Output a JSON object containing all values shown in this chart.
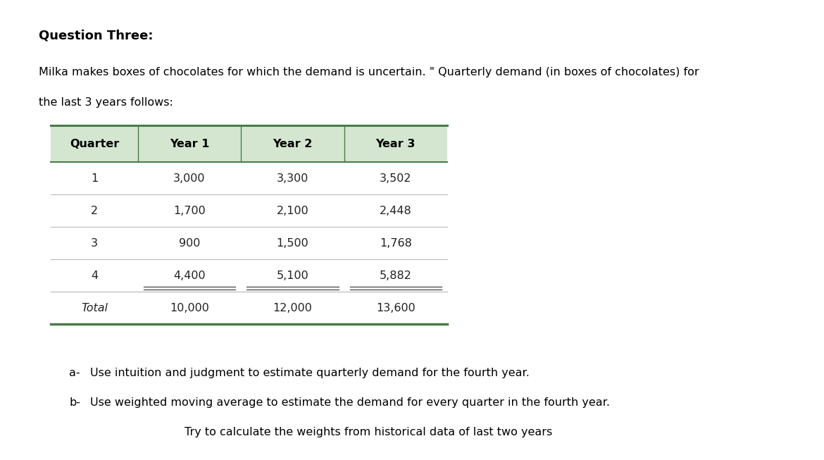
{
  "title": "Question Three:",
  "intro_text_line1": "Milka makes boxes of chocolates for which the demand is uncertain. \" Quarterly demand (in boxes of chocolates) for",
  "intro_text_line2": "the last 3 years follows:",
  "table_headers": [
    "Quarter",
    "Year 1",
    "Year 2",
    "Year 3"
  ],
  "table_rows": [
    [
      "1",
      "3,000",
      "3,300",
      "3,502"
    ],
    [
      "2",
      "1,700",
      "2,100",
      "2,448"
    ],
    [
      "3",
      "900",
      "1,500",
      "1,768"
    ],
    [
      "4",
      "4,400",
      "5,100",
      "5,882"
    ],
    [
      "Total",
      "10,000",
      "12,000",
      "13,600"
    ]
  ],
  "questions": [
    {
      "label": "a-",
      "text": "Use intuition and judgment to estimate quarterly demand for the fourth year."
    },
    {
      "label": "b-",
      "text": "Use weighted moving average to estimate the demand for every quarter in the fourth year."
    },
    {
      "label": "",
      "text": "Try to calculate the weights from historical data of last two years"
    }
  ],
  "header_bg_color": "#d4e6d0",
  "header_line_color": "#4a7a4a",
  "table_line_color": "#bbbbbb",
  "bottom_line_color": "#4a7a4a",
  "bg_color": "#ffffff",
  "title_fontsize": 13,
  "body_fontsize": 11.5,
  "table_fontsize": 11.5
}
